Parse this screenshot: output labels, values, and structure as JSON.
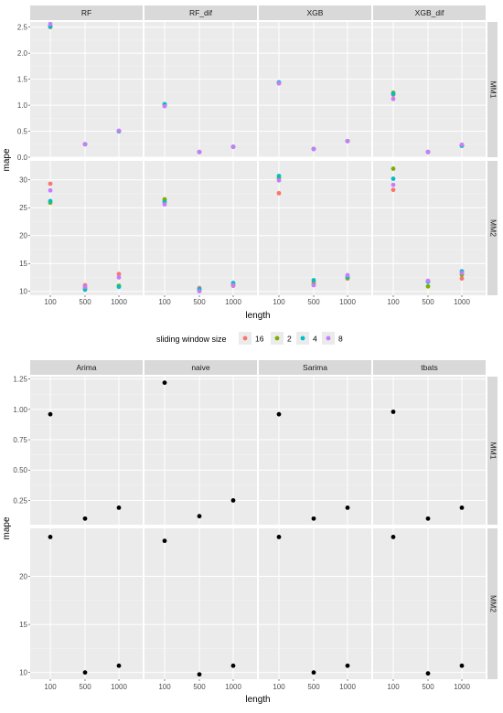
{
  "legend": {
    "title": "sliding window size",
    "entries": [
      {
        "label": "16",
        "color": "#F8766D"
      },
      {
        "label": "2",
        "color": "#7CAE00"
      },
      {
        "label": "4",
        "color": "#00BFC4"
      },
      {
        "label": "8",
        "color": "#C77CFF"
      }
    ]
  },
  "chart_data": [
    {
      "type": "scatter",
      "xlabel": "length",
      "ylabel": "mape",
      "x_categories": [
        "100",
        "500",
        "1000"
      ],
      "panels": [
        "RF",
        "RF_dif",
        "XGB",
        "XGB_dif"
      ],
      "rows": [
        {
          "label": "MM1",
          "ylim": [
            0,
            2.6
          ],
          "yticks": [
            {
              "value": 0.0,
              "label": "0.0"
            },
            {
              "value": 0.5,
              "label": "0.5"
            },
            {
              "value": 1.0,
              "label": "1.0"
            },
            {
              "value": 1.5,
              "label": "1.5"
            },
            {
              "value": 2.0,
              "label": "2.0"
            },
            {
              "value": 2.5,
              "label": "2.5"
            }
          ]
        },
        {
          "label": "MM2",
          "ylim": [
            9.3,
            33.4
          ],
          "yticks": [
            {
              "value": 10,
              "label": "10"
            },
            {
              "value": 15,
              "label": "15"
            },
            {
              "value": 20,
              "label": "20"
            },
            {
              "value": 25,
              "label": "25"
            },
            {
              "value": 30,
              "label": "30"
            }
          ]
        }
      ],
      "series": [
        {
          "name": "16",
          "color": "#F8766D",
          "values": {
            "MM1": {
              "RF": [
                2.5,
                0.25,
                0.5
              ],
              "RF_dif": [
                1.0,
                0.1,
                0.2
              ],
              "XGB": [
                1.42,
                0.16,
                0.31
              ],
              "XGB_dif": [
                1.2,
                0.1,
                0.22
              ]
            },
            "MM2": {
              "RF": [
                29.3,
                11.1,
                13.1
              ],
              "RF_dif": [
                26.3,
                10.6,
                11.0
              ],
              "XGB": [
                27.6,
                11.6,
                12.3
              ],
              "XGB_dif": [
                28.2,
                11.8,
                12.3
              ]
            }
          }
        },
        {
          "name": "2",
          "color": "#7CAE00",
          "values": {
            "MM1": {
              "RF": [
                2.52,
                0.25,
                0.5
              ],
              "RF_dif": [
                1.01,
                0.1,
                0.2
              ],
              "XGB": [
                1.43,
                0.16,
                0.31
              ],
              "XGB_dif": [
                1.24,
                0.1,
                0.22
              ]
            },
            "MM2": {
              "RF": [
                25.9,
                10.6,
                11.0
              ],
              "RF_dif": [
                26.5,
                10.2,
                11.2
              ],
              "XGB": [
                30.3,
                11.2,
                12.4
              ],
              "XGB_dif": [
                32.0,
                10.9,
                13.0
              ]
            }
          }
        },
        {
          "name": "4",
          "color": "#00BFC4",
          "values": {
            "MM1": {
              "RF": [
                2.51,
                0.25,
                0.5
              ],
              "RF_dif": [
                1.02,
                0.1,
                0.2
              ],
              "XGB": [
                1.44,
                0.16,
                0.31
              ],
              "XGB_dif": [
                1.22,
                0.1,
                0.22
              ]
            },
            "MM2": {
              "RF": [
                26.2,
                10.3,
                10.8
              ],
              "RF_dif": [
                26.0,
                10.4,
                11.5
              ],
              "XGB": [
                30.7,
                12.0,
                12.6
              ],
              "XGB_dif": [
                30.2,
                11.7,
                13.6
              ]
            }
          }
        },
        {
          "name": "8",
          "color": "#C77CFF",
          "values": {
            "MM1": {
              "RF": [
                2.56,
                0.25,
                0.51
              ],
              "RF_dif": [
                0.98,
                0.1,
                0.2
              ],
              "XGB": [
                1.42,
                0.16,
                0.31
              ],
              "XGB_dif": [
                1.12,
                0.1,
                0.24
              ]
            },
            "MM2": {
              "RF": [
                28.1,
                10.8,
                12.5
              ],
              "RF_dif": [
                25.6,
                10.0,
                11.1
              ],
              "XGB": [
                29.9,
                11.1,
                12.9
              ],
              "XGB_dif": [
                29.1,
                11.9,
                13.3
              ]
            }
          }
        }
      ]
    },
    {
      "type": "scatter",
      "xlabel": "length",
      "ylabel": "mape",
      "x_categories": [
        "100",
        "500",
        "1000"
      ],
      "panels": [
        "Arima",
        "naive",
        "Sarima",
        "tbats"
      ],
      "rows": [
        {
          "label": "MM1",
          "ylim": [
            0.05,
            1.27
          ],
          "yticks": [
            {
              "value": 0.25,
              "label": "0.25"
            },
            {
              "value": 0.5,
              "label": "0.50"
            },
            {
              "value": 0.75,
              "label": "0.75"
            },
            {
              "value": 1.0,
              "label": "1.00"
            },
            {
              "value": 1.25,
              "label": "1.25"
            }
          ]
        },
        {
          "label": "MM2",
          "ylim": [
            9.3,
            25.0
          ],
          "yticks": [
            {
              "value": 10,
              "label": "10"
            },
            {
              "value": 15,
              "label": "15"
            },
            {
              "value": 20,
              "label": "20"
            }
          ]
        }
      ],
      "series": [
        {
          "name": "",
          "color": "#000000",
          "values": {
            "MM1": {
              "Arima": [
                0.96,
                0.1,
                0.19
              ],
              "naive": [
                1.22,
                0.12,
                0.25
              ],
              "Sarima": [
                0.96,
                0.1,
                0.19
              ],
              "tbats": [
                0.98,
                0.1,
                0.19
              ]
            },
            "MM2": {
              "Arima": [
                24.1,
                10.0,
                10.7
              ],
              "naive": [
                23.7,
                9.8,
                10.7
              ],
              "Sarima": [
                24.1,
                10.0,
                10.7
              ],
              "tbats": [
                24.1,
                9.9,
                10.7
              ]
            }
          }
        }
      ]
    }
  ]
}
